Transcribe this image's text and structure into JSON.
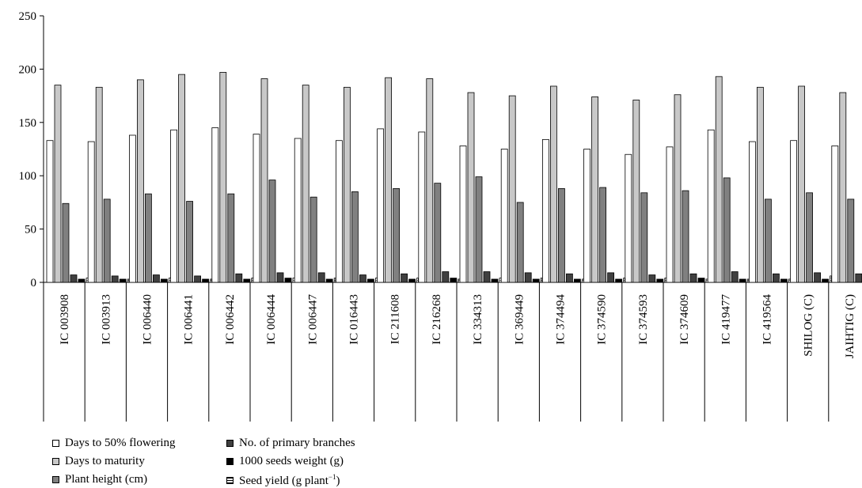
{
  "chart_data": {
    "type": "bar",
    "title": "",
    "xlabel": "",
    "ylabel": "",
    "ylim": [
      0,
      250
    ],
    "yticks": [
      0,
      50,
      100,
      150,
      200,
      250
    ],
    "categories": [
      "IC 003908",
      "IC 003913",
      "IC 006440",
      "IC 006441",
      "IC 006442",
      "IC 006444",
      "IC 006447",
      "IC 016443",
      "IC 211608",
      "IC 216268",
      "IC 334313",
      "IC 369449",
      "IC 374494",
      "IC 374590",
      "IC 374593",
      "IC 374609",
      "IC 419477",
      "IC 419564",
      "SHILOG (C)",
      "JAIHTIG (C)"
    ],
    "series": [
      {
        "name": "Days to 50% flowering",
        "values": [
          133,
          132,
          138,
          143,
          145,
          139,
          135,
          133,
          144,
          141,
          128,
          125,
          134,
          125,
          120,
          127,
          143,
          132,
          133,
          128
        ]
      },
      {
        "name": "Days to maturity",
        "values": [
          185,
          183,
          190,
          195,
          197,
          191,
          185,
          183,
          192,
          191,
          178,
          175,
          184,
          174,
          171,
          176,
          193,
          183,
          184,
          178
        ]
      },
      {
        "name": "Plant height (cm)",
        "values": [
          74,
          78,
          83,
          76,
          83,
          96,
          80,
          85,
          88,
          93,
          99,
          75,
          88,
          89,
          84,
          86,
          98,
          78,
          84,
          78
        ]
      },
      {
        "name": "No. of primary branches",
        "values": [
          7,
          6,
          7,
          6,
          8,
          9,
          9,
          7,
          8,
          10,
          10,
          9,
          8,
          9,
          7,
          8,
          10,
          8,
          9,
          8
        ]
      },
      {
        "name": "1000 seeds weight (g)",
        "values": [
          3,
          3,
          3,
          3,
          3,
          4,
          3,
          3,
          3,
          4,
          3,
          3,
          3,
          3,
          3,
          4,
          3,
          3,
          3,
          4
        ]
      },
      {
        "name": "Seed yield (g plant⁻¹)",
        "values": [
          4,
          3,
          4,
          3,
          4,
          4,
          4,
          4,
          4,
          3,
          4,
          4,
          3,
          4,
          4,
          3,
          3,
          3,
          6,
          6
        ]
      }
    ],
    "colors": {
      "Days to 50% flowering": "#ffffff",
      "Days to maturity": "#c8c8c8",
      "Plant height (cm)": "#808080",
      "No. of primary branches": "#404040",
      "1000 seeds weight (g)": "#000000",
      "Seed yield (g plant⁻¹)": "hatched"
    },
    "grid": false,
    "legend_position": "top-left"
  },
  "legend": {
    "items": [
      {
        "label": "Days to 50% flowering"
      },
      {
        "label": "Days to maturity"
      },
      {
        "label": "Plant height (cm)"
      },
      {
        "label": "No. of primary branches"
      },
      {
        "label": "1000 seeds weight (g)"
      },
      {
        "label_main": "Seed yield (g plant",
        "label_sup": "−1",
        "label_end": ")"
      }
    ]
  }
}
